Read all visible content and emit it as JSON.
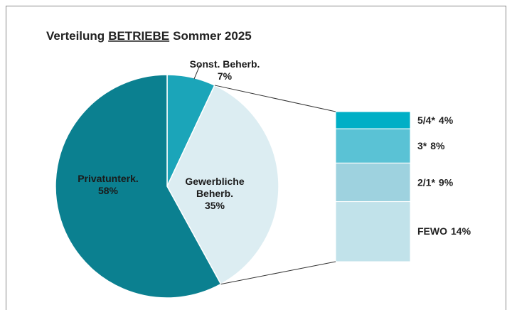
{
  "chart_data": {
    "type": "pie-of-bar",
    "title": [
      "Verteilung",
      "BETRIEBE",
      "Sommer 2025"
    ],
    "categories": [
      "Privatunterk.",
      "Sonst. Beherb.",
      "Gewerbliche Beherb."
    ],
    "values": [
      58,
      7,
      35
    ],
    "value_labels": [
      "58%",
      "7%",
      "35%"
    ],
    "colors": [
      "#0b8090",
      "#1ba5b9",
      "#dcedf2"
    ],
    "breakdown_of": 2,
    "breakdown": {
      "categories": [
        "5/4*",
        "3*",
        "2/1*",
        "FEWO"
      ],
      "values": [
        4,
        8,
        9,
        14
      ],
      "value_labels": [
        "4%",
        "8%",
        "9%",
        "14%"
      ],
      "colors": [
        "#00afc6",
        "#5ac2d5",
        "#9ed2df",
        "#c1e2ea"
      ]
    }
  }
}
